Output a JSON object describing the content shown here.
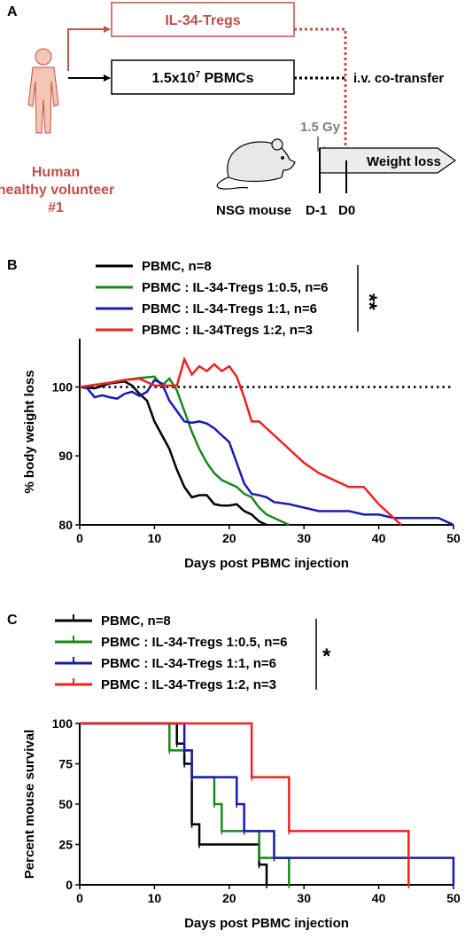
{
  "panelA": {
    "letter": "A",
    "treg_box": "IL-34-Tregs",
    "pbmc_box_pre": "1.5x10",
    "pbmc_box_sup": "7",
    "pbmc_box_post": " PBMCs",
    "iv_label": "i.v. co-transfer",
    "gy_label": "1.5 Gy",
    "weight_loss": "Weight loss",
    "mouse_label": "NSG mouse",
    "d_minus1": "D-1",
    "d0": "D0",
    "human_line1": "Human",
    "human_line2": "healthy volunteer",
    "human_line3": "#1",
    "human_color": "#c0504d",
    "treg_color": "#c0504d",
    "gy_color": "#7f7f7f",
    "human_icon": "human-body-icon",
    "mouse_icon": "mouse-icon"
  },
  "panelB": {
    "letter": "B",
    "significance": "**"
  },
  "panelC": {
    "letter": "C",
    "significance": "*"
  },
  "chart_data": [
    {
      "type": "line",
      "panel": "B",
      "xlabel": "Days post PBMC injection",
      "ylabel": "% body weight loss",
      "xlim": [
        0,
        50
      ],
      "ylim": [
        80,
        107
      ],
      "xticks": [
        0,
        10,
        20,
        30,
        40,
        50
      ],
      "yticks": [
        80,
        90,
        100
      ],
      "reference_line": {
        "y": 100,
        "style": "dotted"
      },
      "legend_position": "top",
      "series": [
        {
          "name": "PBMC, n=8",
          "color": "#000000",
          "x": [
            0,
            2,
            4,
            6,
            7,
            8,
            9,
            10,
            11,
            12,
            13,
            14,
            15,
            16,
            17,
            18,
            19,
            20,
            21,
            22,
            23,
            24,
            25
          ],
          "y": [
            100,
            99.8,
            100.5,
            100.8,
            100.2,
            99,
            98,
            95,
            93,
            91,
            88,
            85.5,
            84,
            84.3,
            84.3,
            83,
            82.8,
            82.8,
            83,
            82,
            81.5,
            80.5,
            80
          ]
        },
        {
          "name": "PBMC : IL-34-Tregs 1:0.5, n=6",
          "color": "#1a8a1a",
          "x": [
            0,
            2,
            4,
            6,
            8,
            10,
            11,
            12,
            13,
            14,
            15,
            16,
            17,
            18,
            19,
            20,
            21,
            22,
            23,
            24,
            25,
            26,
            27,
            28
          ],
          "y": [
            100,
            100.3,
            100.6,
            101,
            101.3,
            101.5,
            100.2,
            101.2,
            99.5,
            96.5,
            93.5,
            91,
            89,
            87.5,
            86.5,
            86,
            85.5,
            84.5,
            84,
            82.5,
            81.5,
            81,
            80.5,
            80
          ]
        },
        {
          "name": "PBMC : IL-34-Tregs 1:1, n=6",
          "color": "#1a1ab3",
          "x": [
            0,
            1,
            2,
            3,
            4,
            5,
            6,
            7,
            8,
            9,
            10,
            11,
            12,
            13,
            14,
            15,
            16,
            17,
            18,
            19,
            20,
            21,
            22,
            23,
            24,
            25,
            26,
            28,
            30,
            32,
            34,
            36,
            38,
            40,
            42,
            44,
            46,
            48,
            49,
            50
          ],
          "y": [
            100,
            99.8,
            98.5,
            98.8,
            98.5,
            98.3,
            99,
            99.3,
            98.7,
            99.3,
            101,
            100.5,
            98,
            96.5,
            95,
            94.8,
            95,
            94.7,
            94,
            93,
            92,
            89,
            86,
            84.5,
            84.3,
            84,
            83.3,
            83,
            82.5,
            82,
            82,
            82,
            81.5,
            81.5,
            81,
            81,
            81,
            81,
            80.5,
            80
          ]
        },
        {
          "name": "PBMC : IL-34Tregs 1:2, n=3",
          "color": "#ee2222",
          "x": [
            0,
            2,
            4,
            6,
            8,
            10,
            12,
            13,
            14,
            15,
            16,
            17,
            18,
            19,
            20,
            21,
            22,
            23,
            24,
            26,
            28,
            30,
            32,
            34,
            36,
            38,
            40,
            42,
            43
          ],
          "y": [
            100,
            100.3,
            100.6,
            101,
            101.2,
            100.2,
            100.2,
            100.2,
            104,
            101.8,
            103,
            102.3,
            103.3,
            102.3,
            103,
            101.5,
            98.5,
            95,
            95,
            93,
            91,
            89,
            87.5,
            86.5,
            85.5,
            85.5,
            83,
            81,
            80
          ]
        }
      ]
    },
    {
      "type": "line",
      "panel": "C",
      "xlabel": "Days post PBMC injection",
      "ylabel": "Percent mouse survival",
      "xlim": [
        0,
        50
      ],
      "ylim": [
        0,
        100
      ],
      "xticks": [
        0,
        10,
        20,
        30,
        40,
        50
      ],
      "yticks": [
        0,
        25,
        50,
        75,
        100
      ],
      "step": true,
      "legend_position": "top",
      "series": [
        {
          "name": "PBMC, n=8",
          "color": "#000000",
          "x": [
            0,
            13,
            14,
            15,
            16,
            24,
            25
          ],
          "y": [
            100,
            87.5,
            75,
            37.5,
            25,
            12.5,
            0
          ]
        },
        {
          "name": "PBMC : IL-34-Tregs 1:0.5, n=6",
          "color": "#1a8a1a",
          "x": [
            0,
            12,
            15,
            18,
            19,
            24,
            28
          ],
          "y": [
            100,
            83.3,
            66.7,
            50,
            33.3,
            16.7,
            0
          ]
        },
        {
          "name": "PBMC : IL-34-Tregs 1:1, n=6",
          "color": "#1a1ab3",
          "x": [
            0,
            14,
            15,
            21,
            22,
            26,
            50
          ],
          "y": [
            100,
            83.3,
            66.7,
            50,
            33.3,
            16.7,
            0
          ]
        },
        {
          "name": "PBMC : IL-34-Tregs 1:2, n=3",
          "color": "#ee2222",
          "x": [
            0,
            23,
            28,
            44
          ],
          "y": [
            100,
            66.7,
            33.3,
            0
          ]
        }
      ]
    }
  ]
}
